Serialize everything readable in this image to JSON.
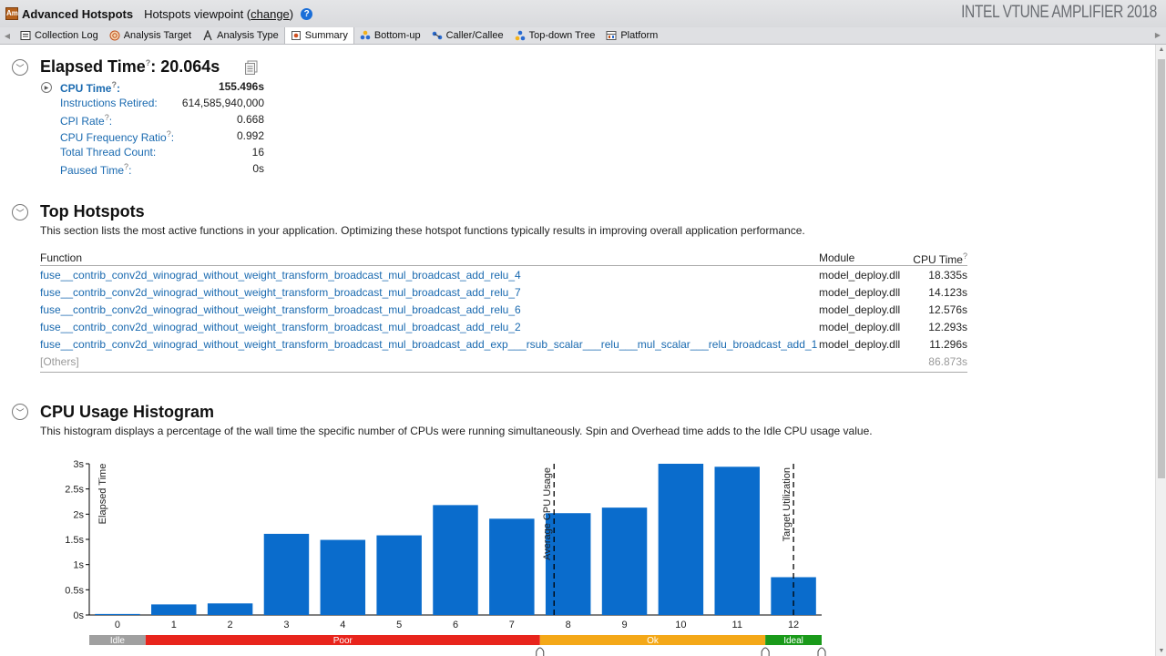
{
  "titlebar": {
    "app_icon": "Am",
    "title": "Advanced Hotspots",
    "viewpoint_prefix": "Hotspots viewpoint (",
    "viewpoint_link": "change",
    "viewpoint_suffix": ")",
    "help": "?",
    "brand": "INTEL VTUNE AMPLIFIER 2018"
  },
  "tabs": [
    {
      "label": "Collection Log",
      "icon": "log-icon"
    },
    {
      "label": "Analysis Target",
      "icon": "target-icon"
    },
    {
      "label": "Analysis Type",
      "icon": "analysis-type-icon"
    },
    {
      "label": "Summary",
      "icon": "summary-icon",
      "active": true
    },
    {
      "label": "Bottom-up",
      "icon": "bottom-up-icon"
    },
    {
      "label": "Caller/Callee",
      "icon": "caller-callee-icon"
    },
    {
      "label": "Top-down Tree",
      "icon": "top-down-tree-icon"
    },
    {
      "label": "Platform",
      "icon": "platform-icon"
    }
  ],
  "elapsed": {
    "title": "Elapsed Time",
    "colon": ":",
    "value": "20.064s",
    "metrics": [
      {
        "label": "CPU Time",
        "suffix": ":",
        "value": "155.496s",
        "bold": true,
        "help": true
      },
      {
        "label": "Instructions Retired:",
        "value": "614,585,940,000"
      },
      {
        "label": "CPI Rate",
        "suffix": ":",
        "value": "0.668",
        "help": true
      },
      {
        "label": "CPU Frequency Ratio",
        "suffix": ":",
        "value": "0.992",
        "help": true
      },
      {
        "label": "Total Thread Count:",
        "value": "16"
      },
      {
        "label": "Paused Time",
        "suffix": ":",
        "value": "0s",
        "help": true
      }
    ]
  },
  "hotspots": {
    "title": "Top Hotspots",
    "description": "This section lists the most active functions in your application. Optimizing these hotspot functions typically results in improving overall application performance.",
    "columns": {
      "function": "Function",
      "module": "Module",
      "cpu_time": "CPU Time"
    },
    "rows": [
      {
        "function": "fuse__contrib_conv2d_winograd_without_weight_transform_broadcast_mul_broadcast_add_relu_4",
        "module": "model_deploy.dll",
        "cpu_time": "18.335s"
      },
      {
        "function": "fuse__contrib_conv2d_winograd_without_weight_transform_broadcast_mul_broadcast_add_relu_7",
        "module": "model_deploy.dll",
        "cpu_time": "14.123s"
      },
      {
        "function": "fuse__contrib_conv2d_winograd_without_weight_transform_broadcast_mul_broadcast_add_relu_6",
        "module": "model_deploy.dll",
        "cpu_time": "12.576s"
      },
      {
        "function": "fuse__contrib_conv2d_winograd_without_weight_transform_broadcast_mul_broadcast_add_relu_2",
        "module": "model_deploy.dll",
        "cpu_time": "12.293s"
      },
      {
        "function": "fuse__contrib_conv2d_winograd_without_weight_transform_broadcast_mul_broadcast_add_exp___rsub_scalar___relu___mul_scalar___relu_broadcast_add_1",
        "module": "model_deploy.dll",
        "cpu_time": "11.296s"
      }
    ],
    "others": {
      "function": "[Others]",
      "cpu_time": "86.873s"
    }
  },
  "histogram": {
    "title": "CPU Usage Histogram",
    "description": "This histogram displays a percentage of the wall time the specific number of CPUs were running simultaneously. Spin and Overhead time adds to the Idle CPU usage value."
  },
  "chart_data": {
    "type": "bar",
    "ylabel": "Elapsed Time",
    "ylim": [
      0,
      3
    ],
    "yticks": [
      {
        "value": 0,
        "label": "0s"
      },
      {
        "value": 0.5,
        "label": "0.5s"
      },
      {
        "value": 1,
        "label": "1s"
      },
      {
        "value": 1.5,
        "label": "1.5s"
      },
      {
        "value": 2,
        "label": "2s"
      },
      {
        "value": 2.5,
        "label": "2.5s"
      },
      {
        "value": 3,
        "label": "3s"
      }
    ],
    "categories": [
      "0",
      "1",
      "2",
      "3",
      "4",
      "5",
      "6",
      "7",
      "8",
      "9",
      "10",
      "11",
      "12"
    ],
    "values": [
      0.02,
      0.21,
      0.23,
      1.61,
      1.49,
      1.58,
      2.18,
      1.91,
      2.02,
      2.13,
      3.0,
      2.94,
      0.75
    ],
    "bar_color": "#0a6ccc",
    "markers": [
      {
        "label": "Average CPU Usage",
        "x": 7.75
      },
      {
        "label": "Target Utilization",
        "x": 12
      }
    ],
    "bands": [
      {
        "label": "Idle",
        "from": -0.5,
        "to": 0.5,
        "color": "#a0a0a0"
      },
      {
        "label": "Poor",
        "from": 0.5,
        "to": 7.5,
        "color": "#e8241c"
      },
      {
        "label": "Ok",
        "from": 7.5,
        "to": 11.5,
        "color": "#f4a818"
      },
      {
        "label": "Ideal",
        "from": 11.5,
        "to": 12.5,
        "color": "#1a9a1a"
      }
    ]
  }
}
